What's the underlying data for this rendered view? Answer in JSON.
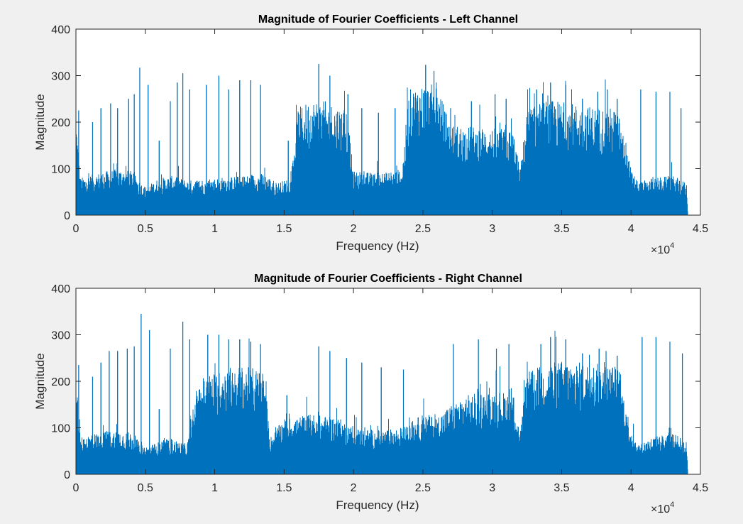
{
  "chart_data": [
    {
      "type": "line",
      "title": "Magnitude of Fourier Coefficients - Left Channel",
      "xlabel": "Frequency (Hz)",
      "ylabel": "Magnitude",
      "xlim": [
        0,
        45000
      ],
      "ylim": [
        0,
        400
      ],
      "x_ticks": [
        0,
        0.5,
        1,
        1.5,
        2,
        2.5,
        3,
        3.5,
        4,
        4.5
      ],
      "x_tick_labels": [
        "0",
        "0.5",
        "1",
        "1.5",
        "2",
        "2.5",
        "3",
        "3.5",
        "4",
        "4.5"
      ],
      "x_multiplier": "×10",
      "x_multiplier_exp": "4",
      "y_ticks": [
        0,
        100,
        200,
        300,
        400
      ],
      "y_tick_labels": [
        "0",
        "100",
        "200",
        "300",
        "400"
      ],
      "series_color": "#0072bd",
      "envelope": [
        [
          0,
          220
        ],
        [
          300,
          80
        ],
        [
          1500,
          90
        ],
        [
          3000,
          100
        ],
        [
          4000,
          95
        ],
        [
          4700,
          70
        ],
        [
          5000,
          60
        ],
        [
          6000,
          80
        ],
        [
          7000,
          85
        ],
        [
          8000,
          75
        ],
        [
          10000,
          80
        ],
        [
          12000,
          85
        ],
        [
          13500,
          90
        ],
        [
          14500,
          70
        ],
        [
          15500,
          80
        ],
        [
          16000,
          230
        ],
        [
          17000,
          250
        ],
        [
          18000,
          245
        ],
        [
          19500,
          230
        ],
        [
          20000,
          95
        ],
        [
          22000,
          90
        ],
        [
          23500,
          100
        ],
        [
          24000,
          270
        ],
        [
          25000,
          285
        ],
        [
          26000,
          280
        ],
        [
          27000,
          195
        ],
        [
          29000,
          190
        ],
        [
          31500,
          185
        ],
        [
          32000,
          95
        ],
        [
          32500,
          230
        ],
        [
          34000,
          250
        ],
        [
          35000,
          245
        ],
        [
          37000,
          235
        ],
        [
          39000,
          230
        ],
        [
          40000,
          100
        ],
        [
          40500,
          70
        ],
        [
          41500,
          80
        ],
        [
          43000,
          85
        ],
        [
          44000,
          70
        ],
        [
          44100,
          0
        ]
      ],
      "peaks": [
        [
          200,
          225
        ],
        [
          1200,
          200
        ],
        [
          1800,
          230
        ],
        [
          2500,
          240
        ],
        [
          3000,
          230
        ],
        [
          3800,
          250
        ],
        [
          4200,
          260
        ],
        [
          4600,
          317
        ],
        [
          5200,
          280
        ],
        [
          6000,
          160
        ],
        [
          6800,
          245
        ],
        [
          7300,
          285
        ],
        [
          7700,
          305
        ],
        [
          8200,
          270
        ],
        [
          9400,
          280
        ],
        [
          10300,
          300
        ],
        [
          11000,
          270
        ],
        [
          11800,
          290
        ],
        [
          12600,
          290
        ],
        [
          13300,
          280
        ],
        [
          15300,
          160
        ],
        [
          17500,
          325
        ],
        [
          18300,
          300
        ],
        [
          19600,
          260
        ],
        [
          20600,
          230
        ],
        [
          21800,
          220
        ],
        [
          23000,
          230
        ],
        [
          25200,
          323
        ],
        [
          25800,
          310
        ],
        [
          27000,
          230
        ],
        [
          28500,
          245
        ],
        [
          30200,
          260
        ],
        [
          31000,
          250
        ],
        [
          33200,
          270
        ],
        [
          34200,
          285
        ],
        [
          35300,
          280
        ],
        [
          36500,
          250
        ],
        [
          37600,
          265
        ],
        [
          38300,
          270
        ],
        [
          39000,
          250
        ],
        [
          40700,
          270
        ],
        [
          41800,
          265
        ],
        [
          42800,
          265
        ],
        [
          43600,
          230
        ]
      ]
    },
    {
      "type": "line",
      "title": "Magnitude of Fourier Coefficients - Right Channel",
      "xlabel": "Frequency (Hz)",
      "ylabel": "Magnitude",
      "xlim": [
        0,
        45000
      ],
      "ylim": [
        0,
        400
      ],
      "x_ticks": [
        0,
        0.5,
        1,
        1.5,
        2,
        2.5,
        3,
        3.5,
        4,
        4.5
      ],
      "x_tick_labels": [
        "0",
        "0.5",
        "1",
        "1.5",
        "2",
        "2.5",
        "3",
        "3.5",
        "4",
        "4.5"
      ],
      "x_multiplier": "×10",
      "x_multiplier_exp": "4",
      "y_ticks": [
        0,
        100,
        200,
        300,
        400
      ],
      "y_tick_labels": [
        "0",
        "100",
        "200",
        "300",
        "400"
      ],
      "series_color": "#0072bd",
      "envelope": [
        [
          0,
          235
        ],
        [
          300,
          80
        ],
        [
          1500,
          90
        ],
        [
          3000,
          95
        ],
        [
          4000,
          90
        ],
        [
          4700,
          65
        ],
        [
          5000,
          60
        ],
        [
          6000,
          70
        ],
        [
          7000,
          75
        ],
        [
          8000,
          65
        ],
        [
          9000,
          210
        ],
        [
          10000,
          220
        ],
        [
          11500,
          235
        ],
        [
          13500,
          225
        ],
        [
          14000,
          80
        ],
        [
          15000,
          120
        ],
        [
          17000,
          130
        ],
        [
          19000,
          120
        ],
        [
          20000,
          100
        ],
        [
          22000,
          95
        ],
        [
          23500,
          100
        ],
        [
          24000,
          110
        ],
        [
          25000,
          130
        ],
        [
          26000,
          125
        ],
        [
          27000,
          150
        ],
        [
          28000,
          170
        ],
        [
          30000,
          180
        ],
        [
          31500,
          175
        ],
        [
          32000,
          90
        ],
        [
          32500,
          220
        ],
        [
          34000,
          240
        ],
        [
          35000,
          245
        ],
        [
          37000,
          240
        ],
        [
          39000,
          235
        ],
        [
          40000,
          100
        ],
        [
          40500,
          65
        ],
        [
          41500,
          80
        ],
        [
          43000,
          90
        ],
        [
          44000,
          70
        ],
        [
          44100,
          0
        ]
      ],
      "peaks": [
        [
          200,
          235
        ],
        [
          1200,
          210
        ],
        [
          1800,
          240
        ],
        [
          2400,
          265
        ],
        [
          3000,
          265
        ],
        [
          3700,
          270
        ],
        [
          4200,
          275
        ],
        [
          4700,
          345
        ],
        [
          5300,
          310
        ],
        [
          6000,
          140
        ],
        [
          6800,
          270
        ],
        [
          7700,
          328
        ],
        [
          8200,
          290
        ],
        [
          9500,
          300
        ],
        [
          10300,
          300
        ],
        [
          11000,
          290
        ],
        [
          11800,
          290
        ],
        [
          12600,
          285
        ],
        [
          13300,
          280
        ],
        [
          15200,
          170
        ],
        [
          17500,
          275
        ],
        [
          18300,
          265
        ],
        [
          19500,
          250
        ],
        [
          20600,
          240
        ],
        [
          22000,
          230
        ],
        [
          23600,
          225
        ],
        [
          27200,
          280
        ],
        [
          29000,
          290
        ],
        [
          30300,
          270
        ],
        [
          31200,
          280
        ],
        [
          33500,
          280
        ],
        [
          34200,
          295
        ],
        [
          35300,
          290
        ],
        [
          36500,
          260
        ],
        [
          37700,
          270
        ],
        [
          38200,
          265
        ],
        [
          39000,
          255
        ],
        [
          40800,
          295
        ],
        [
          41800,
          295
        ],
        [
          42800,
          285
        ],
        [
          43700,
          260
        ]
      ]
    }
  ]
}
